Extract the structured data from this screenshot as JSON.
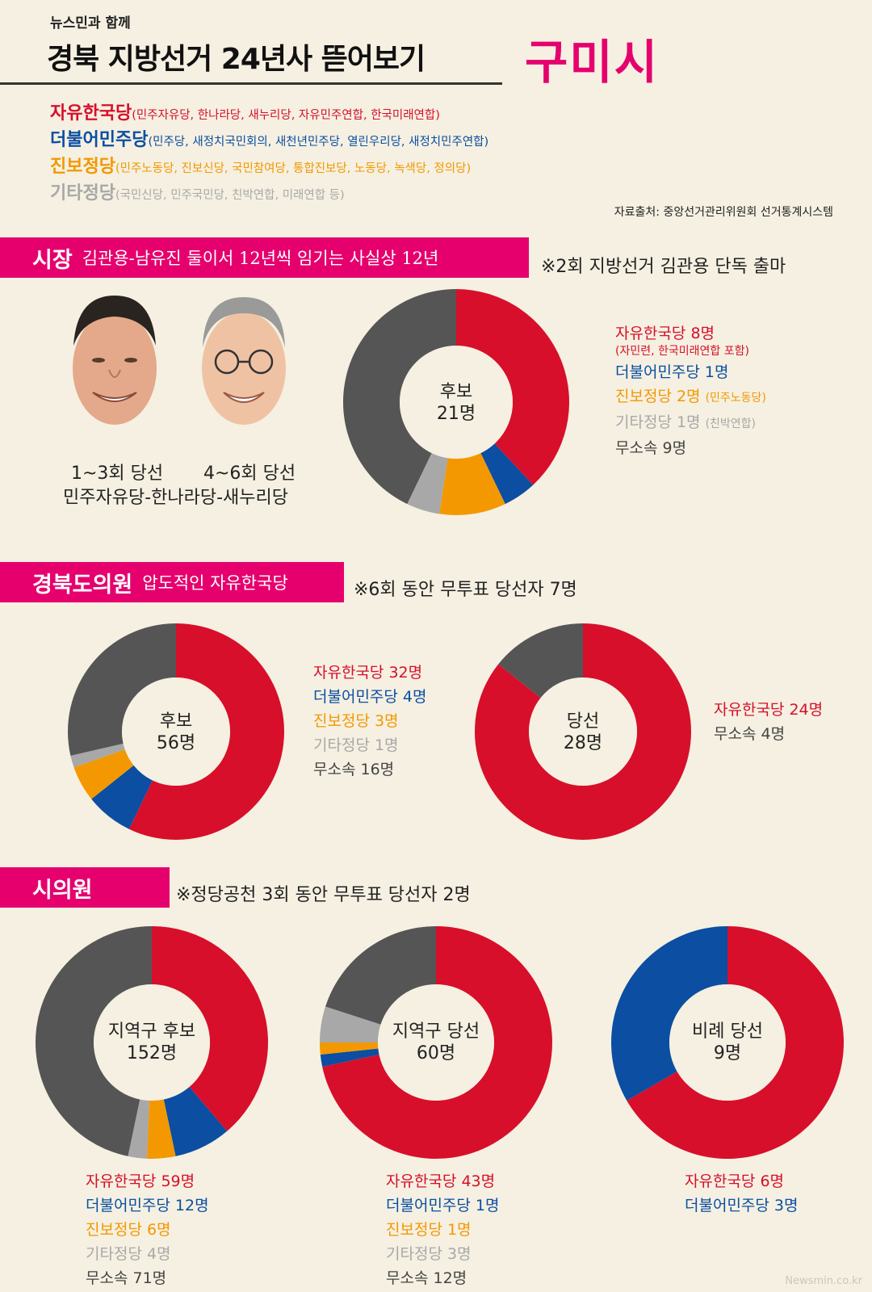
{
  "header": {
    "subtitle": "뉴스민과 함께",
    "title": "경북 지방선거 24년사 뜯어보기",
    "city": "구미시"
  },
  "parties": [
    {
      "name": "자유한국당",
      "members": "(민주자유당, 한나라당, 새누리당, 자유민주연합, 한국미래연합)",
      "color": "#d70f2b"
    },
    {
      "name": "더불어민주당",
      "members": "(민주당, 새정치국민회의, 새천년민주당, 열린우리당, 새정치민주연합)",
      "color": "#0b4ea2"
    },
    {
      "name": "진보정당",
      "members": "(민주노동당, 진보신당, 국민참여당, 통합진보당, 노동당, 녹색당, 정의당)",
      "color": "#f39800"
    },
    {
      "name": "기타정당",
      "members": "(국민신당, 민주국민당, 친박연합, 미래연합 등)",
      "color": "#a8a8a8"
    }
  ],
  "independent_color": "#555555",
  "source": "자료출처: 중앙선거관리위원회 선거통계시스템",
  "mayor": {
    "banner_main": "시장",
    "banner_sub": "김관용-남유진 둘이서 12년씩 임기는 사실상 12년",
    "note": "※2회 지방선거 김관용 단독 출마",
    "person1_terms": "1~3회 당선",
    "person2_terms": "4~6회 당선",
    "parties_caption": "민주자유당-한나라당-새누리당",
    "legend": {
      "red": "자유한국당 8명",
      "red_sub": "(자민련, 한국미래연합 포함)",
      "blue": "더불어민주당 1명",
      "orange": "진보정당 2명",
      "orange_sub": "(민주노동당)",
      "gray": "기타정당 1명",
      "gray_sub": "(친박연합)",
      "dark": "무소속 9명"
    }
  },
  "province": {
    "banner_main": "경북도의원",
    "banner_sub": "압도적인 자유한국당",
    "note": "※6회 동안 무투표 당선자 7명",
    "cand_legend": {
      "red": "자유한국당 32명",
      "blue": "더불어민주당 4명",
      "orange": "진보정당 3명",
      "gray": "기타정당 1명",
      "dark": "무소속 16명"
    },
    "elected_legend": {
      "red": "자유한국당 24명",
      "dark": "무소속 4명"
    }
  },
  "council": {
    "banner_main": "시의원",
    "note": "※정당공천 3회 동안 무투표 당선자 2명",
    "cand_legend": {
      "red": "자유한국당 59명",
      "blue": "더불어민주당 12명",
      "orange": "진보정당 6명",
      "gray": "기타정당 4명",
      "dark": "무소속 71명"
    },
    "elected_legend": {
      "red": "자유한국당 43명",
      "blue": "더불어민주당 1명",
      "orange": "진보정당 1명",
      "gray": "기타정당 3명",
      "dark": "무소속 12명"
    },
    "prop_legend": {
      "red": "자유한국당 6명",
      "blue": "더불어민주당 3명"
    }
  },
  "watermark": "Newsmin.co.kr",
  "chart_data": [
    {
      "type": "pie",
      "id": "mayor-cand",
      "center_label": [
        "후보",
        "21명"
      ],
      "categories": [
        "자유한국당",
        "더불어민주당",
        "진보정당",
        "기타정당",
        "무소속"
      ],
      "values": [
        8,
        1,
        2,
        1,
        9
      ]
    },
    {
      "type": "pie",
      "id": "prov-cand",
      "center_label": [
        "후보",
        "56명"
      ],
      "categories": [
        "자유한국당",
        "더불어민주당",
        "진보정당",
        "기타정당",
        "무소속"
      ],
      "values": [
        32,
        4,
        3,
        1,
        16
      ]
    },
    {
      "type": "pie",
      "id": "prov-elected",
      "center_label": [
        "당선",
        "28명"
      ],
      "categories": [
        "자유한국당",
        "무소속"
      ],
      "values": [
        24,
        4
      ]
    },
    {
      "type": "pie",
      "id": "council-cand",
      "center_label": [
        "지역구 후보",
        "152명"
      ],
      "categories": [
        "자유한국당",
        "더불어민주당",
        "진보정당",
        "기타정당",
        "무소속"
      ],
      "values": [
        59,
        12,
        6,
        4,
        71
      ]
    },
    {
      "type": "pie",
      "id": "council-elected",
      "center_label": [
        "지역구 당선",
        "60명"
      ],
      "categories": [
        "자유한국당",
        "더불어민주당",
        "진보정당",
        "기타정당",
        "무소속"
      ],
      "values": [
        43,
        1,
        1,
        3,
        12
      ]
    },
    {
      "type": "pie",
      "id": "council-prop",
      "center_label": [
        "비례 당선",
        "9명"
      ],
      "categories": [
        "자유한국당",
        "더불어민주당"
      ],
      "values": [
        6,
        3
      ]
    }
  ]
}
